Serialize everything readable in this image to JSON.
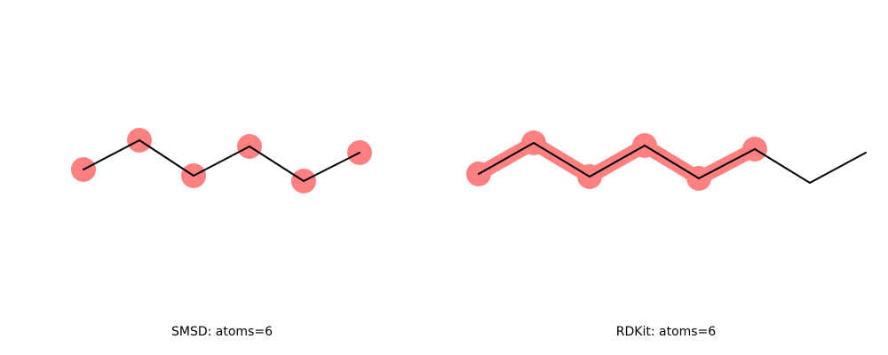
{
  "panels": [
    {
      "label": "SMSD: atoms=6",
      "highlight_mode": "atoms-only",
      "total_atoms": 6,
      "highlighted_atoms": 6
    },
    {
      "label": "RDKit: atoms=6",
      "highlight_mode": "atoms-and-bonds",
      "total_atoms": 8,
      "highlighted_atoms": 6
    }
  ],
  "colors": {
    "highlight": "#ff8080",
    "bond": "#000000",
    "background": "#ffffff"
  }
}
